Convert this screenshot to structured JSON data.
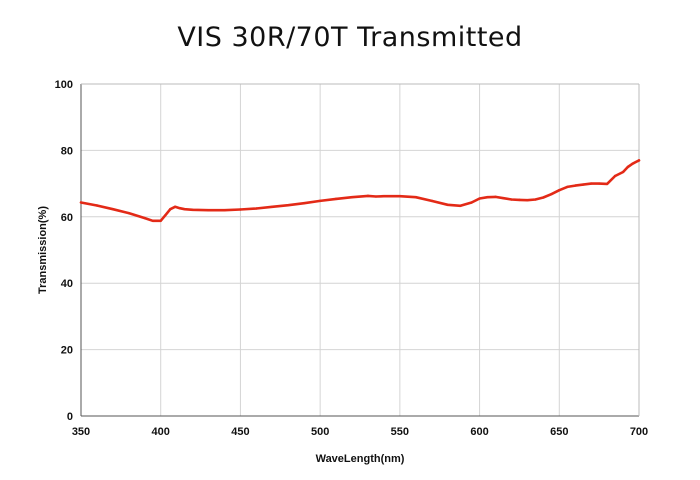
{
  "chart_data": {
    "type": "line",
    "title": "VIS 30R/70T Transmitted",
    "xlabel": "WaveLength(nm)",
    "ylabel": "Transmission(%)",
    "xlim": [
      350,
      700
    ],
    "ylim": [
      0,
      100
    ],
    "xticks": [
      350,
      400,
      450,
      500,
      550,
      600,
      650,
      700
    ],
    "yticks": [
      0,
      20,
      40,
      60,
      80,
      100
    ],
    "grid": true,
    "series_color": "#e32a17",
    "series": [
      {
        "x": [
          350,
          360,
          370,
          380,
          390,
          395,
          400,
          403,
          406,
          409,
          412,
          415,
          420,
          430,
          440,
          450,
          460,
          470,
          480,
          490,
          500,
          510,
          520,
          530,
          535,
          540,
          550,
          560,
          570,
          580,
          588,
          595,
          600,
          605,
          610,
          615,
          620,
          625,
          630,
          635,
          640,
          645,
          650,
          655,
          660,
          665,
          670,
          675,
          680,
          685,
          690,
          693,
          696,
          698,
          700
        ],
        "y": [
          64.3,
          63.4,
          62.3,
          61.1,
          59.6,
          58.8,
          58.8,
          60.5,
          62.3,
          63.0,
          62.6,
          62.3,
          62.1,
          62.0,
          62.0,
          62.2,
          62.5,
          63.0,
          63.5,
          64.1,
          64.8,
          65.4,
          65.9,
          66.3,
          66.1,
          66.2,
          66.2,
          65.9,
          64.8,
          63.6,
          63.3,
          64.3,
          65.5,
          65.9,
          66.0,
          65.6,
          65.2,
          65.1,
          65.0,
          65.2,
          65.8,
          66.8,
          68.0,
          69.0,
          69.4,
          69.7,
          70.0,
          70.0,
          69.9,
          72.3,
          73.5,
          75.0,
          76.0,
          76.5,
          77.0
        ]
      }
    ]
  }
}
